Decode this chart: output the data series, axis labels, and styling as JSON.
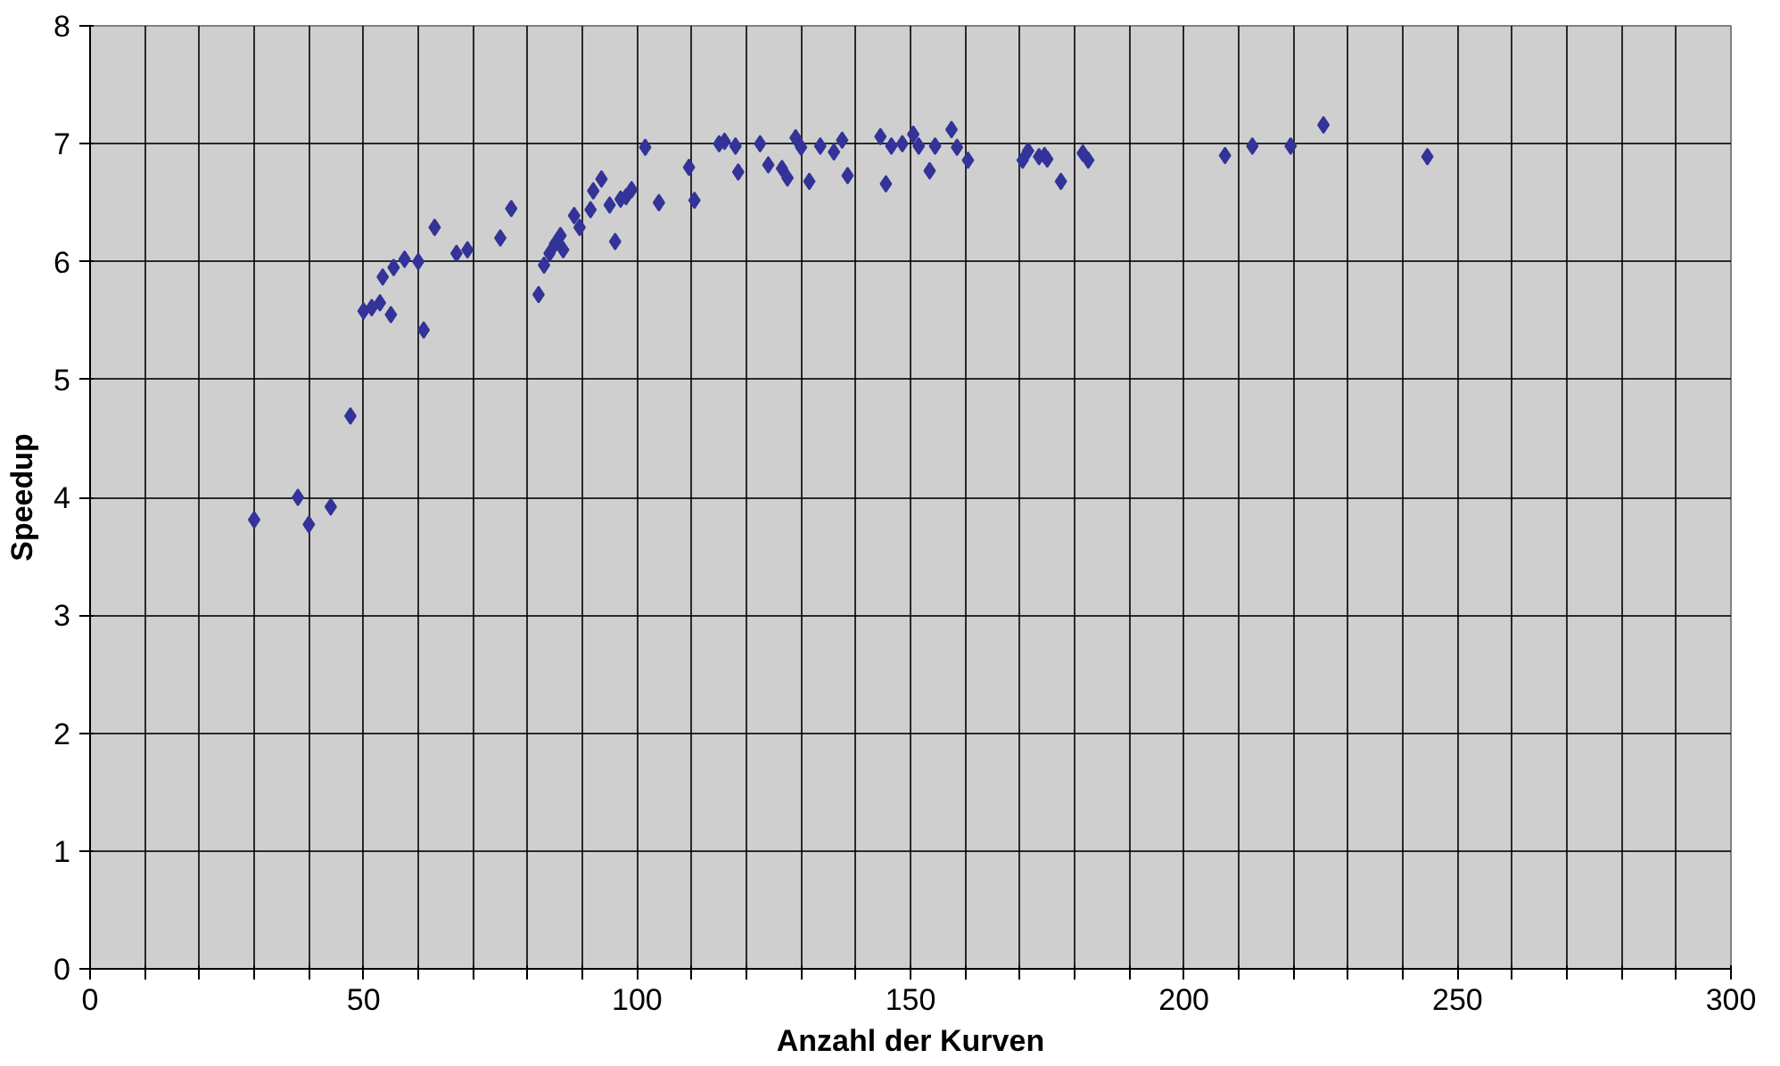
{
  "chart_data": {
    "type": "scatter",
    "xlabel": "Anzahl der Kurven",
    "ylabel": "Speedup",
    "marker": "diamond",
    "grid": true,
    "xlim": [
      0,
      300
    ],
    "ylim": [
      0,
      8
    ],
    "xticks": [
      0,
      {
        "value": 10,
        "label": null
      },
      {
        "value": 20,
        "label": null
      },
      {
        "value": 30,
        "label": null
      },
      {
        "value": 40,
        "label": null
      },
      50,
      {
        "value": 60,
        "label": null
      },
      {
        "value": 70,
        "label": null
      },
      {
        "value": 80,
        "label": null
      },
      {
        "value": 90,
        "label": null
      },
      100,
      {
        "value": 110,
        "label": null
      },
      {
        "value": 120,
        "label": null
      },
      {
        "value": 130,
        "label": null
      },
      {
        "value": 140,
        "label": null
      },
      150,
      {
        "value": 160,
        "label": null
      },
      {
        "value": 170,
        "label": null
      },
      {
        "value": 180,
        "label": null
      },
      {
        "value": 190,
        "label": null
      },
      200,
      {
        "value": 210,
        "label": null
      },
      {
        "value": 220,
        "label": null
      },
      {
        "value": 230,
        "label": null
      },
      {
        "value": 240,
        "label": null
      },
      250,
      {
        "value": 260,
        "label": null
      },
      {
        "value": 270,
        "label": null
      },
      {
        "value": 280,
        "label": null
      },
      {
        "value": 290,
        "label": null
      },
      300
    ],
    "yticks": [
      0,
      1,
      2,
      3,
      4,
      5,
      6,
      7,
      8
    ],
    "series": [
      {
        "color": "#333399",
        "x": [
          30,
          38,
          40,
          44,
          47.6,
          50,
          51.5,
          53,
          53.5,
          55,
          55.5,
          57.5,
          60,
          61,
          63,
          67,
          69,
          75,
          77,
          82,
          83,
          84,
          85,
          86,
          86.5,
          88.5,
          89.5,
          91.5,
          92,
          93.5,
          95,
          96,
          97,
          98,
          99,
          101.5,
          104,
          109.5,
          110.5,
          115,
          116,
          118,
          118.5,
          122.5,
          124,
          126.5,
          127.5,
          129,
          130,
          131.5,
          133.5,
          136,
          137.5,
          138.5,
          144.5,
          146.5,
          145.5,
          148.5,
          150.5,
          151.5,
          153.5,
          154.5,
          157.5,
          158.5,
          160.5,
          170.5,
          171.5,
          173.5,
          174.5,
          175,
          177.5,
          181.5,
          182.5,
          207.5,
          212.5,
          219.5,
          225.5,
          244.5
        ],
        "values": [
          3.81,
          4.0,
          3.77,
          3.92,
          4.69,
          5.58,
          5.61,
          5.65,
          5.87,
          5.55,
          5.95,
          6.02,
          6.0,
          5.42,
          6.29,
          6.07,
          6.1,
          6.2,
          6.45,
          5.72,
          5.97,
          6.07,
          6.15,
          6.22,
          6.1,
          6.39,
          6.29,
          6.44,
          6.6,
          6.7,
          6.48,
          6.17,
          6.53,
          6.55,
          6.61,
          6.97,
          6.5,
          6.8,
          6.52,
          7.0,
          7.02,
          6.98,
          6.76,
          7.0,
          6.82,
          6.79,
          6.71,
          7.05,
          6.97,
          6.68,
          6.98,
          6.93,
          7.03,
          6.73,
          7.06,
          6.98,
          6.66,
          7.0,
          7.08,
          6.98,
          6.77,
          6.98,
          7.12,
          6.97,
          6.86,
          6.86,
          6.94,
          6.89,
          6.9,
          6.87,
          6.68,
          6.92,
          6.86,
          6.9,
          6.98,
          6.98,
          7.16,
          6.89
        ]
      }
    ]
  }
}
